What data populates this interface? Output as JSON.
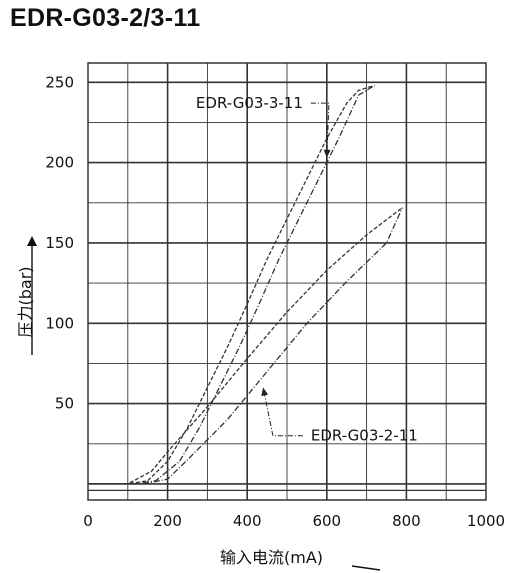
{
  "chart_data": {
    "type": "line",
    "title": "EDR-G03-2/3-11",
    "xlabel": "输入电流(mA)",
    "ylabel": "压力(bar)",
    "xlim": [
      0,
      1000
    ],
    "ylim": [
      -10,
      262
    ],
    "x_ticks": [
      "0",
      "200",
      "400",
      "600",
      "800",
      "1000"
    ],
    "x_tick_values": [
      0,
      200,
      400,
      600,
      800,
      1000
    ],
    "y_ticks": [
      "50",
      "100",
      "150",
      "200",
      "250"
    ],
    "y_tick_values": [
      50,
      100,
      150,
      200,
      250
    ],
    "grid": true,
    "colors": {
      "line": "#333333",
      "grid": "#333333",
      "axis_text": "#111111"
    },
    "series": [
      {
        "name": "EDR-G03-3-11",
        "label_at": [
          540,
          237
        ],
        "arrow_to": [
          600,
          203
        ],
        "up": {
          "x": [
            0,
            100,
            150,
            200,
            250,
            300,
            350,
            400,
            450,
            500,
            550,
            600,
            650,
            680,
            720
          ],
          "y": [
            0,
            0,
            2,
            14,
            35,
            60,
            85,
            112,
            140,
            165,
            190,
            215,
            237,
            245,
            248
          ]
        },
        "down": {
          "x": [
            0,
            120,
            170,
            230,
            280,
            330,
            380,
            430,
            480,
            530,
            580,
            630,
            680,
            720
          ],
          "y": [
            0,
            0,
            2,
            14,
            35,
            60,
            85,
            112,
            140,
            165,
            190,
            215,
            242,
            248
          ]
        }
      },
      {
        "name": "EDR-G03-2-11",
        "label_at": [
          560,
          30
        ],
        "arrow_to": [
          440,
          60
        ],
        "up": {
          "x": [
            0,
            100,
            160,
            200,
            300,
            400,
            500,
            600,
            700,
            790
          ],
          "y": [
            0,
            0,
            8,
            20,
            48,
            78,
            107,
            133,
            155,
            172
          ]
        },
        "down": {
          "x": [
            0,
            140,
            200,
            250,
            350,
            450,
            550,
            650,
            750,
            790
          ],
          "y": [
            0,
            0,
            3,
            15,
            40,
            70,
            100,
            126,
            150,
            172
          ]
        }
      }
    ]
  }
}
